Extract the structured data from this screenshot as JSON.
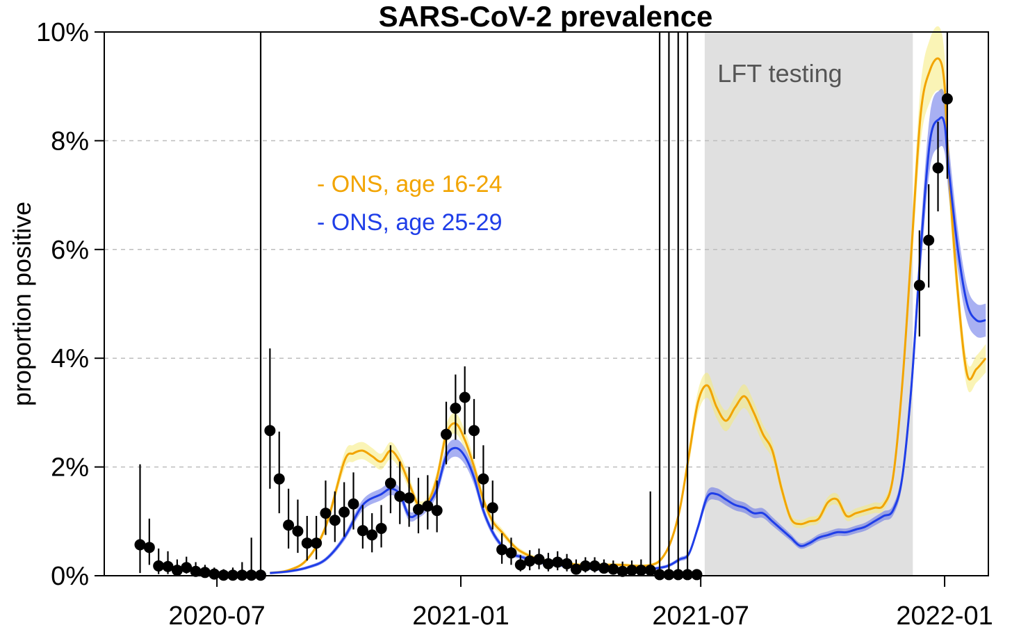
{
  "chart_data": {
    "type": "line",
    "title": "SARS-CoV-2 prevalence",
    "xlabel": "",
    "ylabel": "proportion positive",
    "xlim": [
      "2020-04-07",
      "2022-02-03"
    ],
    "ylim": [
      0,
      10
    ],
    "y_unit": "%",
    "x_ticks": [
      "2020-07-01",
      "2021-01-01",
      "2021-07-01",
      "2022-01-01"
    ],
    "x_tick_labels": [
      "2020-07",
      "2021-01",
      "2021-07",
      "2022-01"
    ],
    "y_ticks": [
      0,
      2,
      4,
      6,
      8,
      10
    ],
    "y_tick_labels": [
      "0%",
      "2%",
      "4%",
      "6%",
      "8%",
      "10%"
    ],
    "grid": "horizontal dashed",
    "legend_position": "upper-left-center",
    "shaded_region": {
      "label": "LFT testing",
      "start": "2021-07-04",
      "end": "2021-12-08",
      "color": "#e0e0e0"
    },
    "series": [
      {
        "name": "- ONS, age 16-24",
        "color": "#f2a400",
        "band_color": "#f5eb7a",
        "x": [
          "2020-08-10",
          "2020-08-24",
          "2020-09-07",
          "2020-09-21",
          "2020-10-05",
          "2020-10-12",
          "2020-10-19",
          "2020-10-26",
          "2020-11-02",
          "2020-11-09",
          "2020-11-16",
          "2020-11-23",
          "2020-11-30",
          "2020-12-07",
          "2020-12-14",
          "2020-12-21",
          "2020-12-28",
          "2021-01-04",
          "2021-01-11",
          "2021-01-18",
          "2021-01-25",
          "2021-02-01",
          "2021-02-08",
          "2021-02-15",
          "2021-03-01",
          "2021-03-15",
          "2021-04-01",
          "2021-04-15",
          "2021-05-01",
          "2021-05-15",
          "2021-05-25",
          "2021-06-01",
          "2021-06-08",
          "2021-06-15",
          "2021-06-22",
          "2021-06-29",
          "2021-07-06",
          "2021-07-13",
          "2021-07-20",
          "2021-07-27",
          "2021-08-03",
          "2021-08-10",
          "2021-08-17",
          "2021-08-24",
          "2021-08-31",
          "2021-09-07",
          "2021-09-14",
          "2021-09-21",
          "2021-09-28",
          "2021-10-05",
          "2021-10-12",
          "2021-10-19",
          "2021-10-26",
          "2021-11-02",
          "2021-11-09",
          "2021-11-16",
          "2021-11-23",
          "2021-11-30",
          "2021-12-07",
          "2021-12-14",
          "2021-12-21",
          "2021-12-28",
          "2022-01-01",
          "2022-01-04",
          "2022-01-11",
          "2022-01-18",
          "2022-01-25",
          "2022-02-01"
        ],
        "values": [
          0.05,
          0.1,
          0.3,
          0.9,
          2.1,
          2.25,
          2.3,
          2.2,
          2.1,
          2.3,
          2.1,
          1.7,
          1.3,
          1.35,
          1.8,
          2.6,
          2.8,
          2.5,
          2.0,
          1.4,
          1.0,
          0.8,
          0.6,
          0.45,
          0.3,
          0.25,
          0.2,
          0.2,
          0.2,
          0.18,
          0.2,
          0.3,
          0.6,
          1.2,
          2.2,
          3.2,
          3.5,
          3.1,
          2.85,
          3.1,
          3.3,
          3.0,
          2.6,
          2.3,
          1.6,
          1.05,
          0.95,
          1.0,
          1.05,
          1.35,
          1.4,
          1.1,
          1.15,
          1.2,
          1.25,
          1.3,
          1.8,
          3.5,
          6.0,
          8.5,
          9.3,
          9.5,
          9.0,
          7.5,
          5.2,
          3.7,
          3.8,
          4.0
        ]
      },
      {
        "name": "- ONS, age 25-29",
        "color": "#1f3ee8",
        "band_color": "#6070e8",
        "x": [
          "2020-08-10",
          "2020-08-24",
          "2020-09-07",
          "2020-09-21",
          "2020-10-05",
          "2020-10-19",
          "2020-11-02",
          "2020-11-09",
          "2020-11-16",
          "2020-11-23",
          "2020-11-30",
          "2020-12-07",
          "2020-12-14",
          "2020-12-21",
          "2020-12-28",
          "2021-01-04",
          "2021-01-11",
          "2021-01-18",
          "2021-01-25",
          "2021-02-01",
          "2021-02-08",
          "2021-02-15",
          "2021-03-01",
          "2021-03-15",
          "2021-04-01",
          "2021-04-15",
          "2021-05-01",
          "2021-05-15",
          "2021-06-01",
          "2021-06-08",
          "2021-06-15",
          "2021-06-22",
          "2021-06-29",
          "2021-07-06",
          "2021-07-13",
          "2021-07-20",
          "2021-07-27",
          "2021-08-03",
          "2021-08-10",
          "2021-08-17",
          "2021-08-24",
          "2021-08-31",
          "2021-09-07",
          "2021-09-14",
          "2021-09-21",
          "2021-09-28",
          "2021-10-05",
          "2021-10-12",
          "2021-10-19",
          "2021-10-26",
          "2021-11-02",
          "2021-11-09",
          "2021-11-16",
          "2021-11-23",
          "2021-11-30",
          "2021-12-07",
          "2021-12-14",
          "2021-12-21",
          "2021-12-28",
          "2022-01-01",
          "2022-01-04",
          "2022-01-11",
          "2022-01-18",
          "2022-01-25",
          "2022-02-01"
        ],
        "values": [
          0.05,
          0.08,
          0.15,
          0.3,
          0.7,
          1.3,
          1.5,
          1.6,
          1.5,
          1.1,
          1.15,
          1.3,
          1.6,
          2.2,
          2.35,
          2.2,
          1.8,
          1.2,
          0.8,
          0.55,
          0.4,
          0.35,
          0.25,
          0.2,
          0.15,
          0.12,
          0.1,
          0.1,
          0.15,
          0.2,
          0.3,
          0.4,
          0.9,
          1.45,
          1.5,
          1.4,
          1.3,
          1.25,
          1.15,
          1.15,
          1.0,
          0.85,
          0.7,
          0.55,
          0.6,
          0.7,
          0.75,
          0.8,
          0.8,
          0.85,
          0.9,
          1.0,
          1.1,
          1.2,
          1.8,
          3.5,
          6.0,
          8.0,
          8.4,
          8.3,
          7.5,
          6.0,
          5.0,
          4.7,
          4.7
        ]
      }
    ],
    "points": {
      "x": [
        "2020-05-04",
        "2020-05-11",
        "2020-05-18",
        "2020-05-25",
        "2020-06-01",
        "2020-06-08",
        "2020-06-15",
        "2020-06-22",
        "2020-06-29",
        "2020-07-06",
        "2020-07-13",
        "2020-07-20",
        "2020-07-27",
        "2020-08-03",
        "2020-08-10",
        "2020-08-17",
        "2020-08-24",
        "2020-08-31",
        "2020-09-07",
        "2020-09-14",
        "2020-09-21",
        "2020-09-28",
        "2020-10-05",
        "2020-10-12",
        "2020-10-19",
        "2020-10-26",
        "2020-11-02",
        "2020-11-09",
        "2020-11-16",
        "2020-11-23",
        "2020-11-30",
        "2020-12-07",
        "2020-12-14",
        "2020-12-21",
        "2020-12-28",
        "2021-01-04",
        "2021-01-11",
        "2021-01-18",
        "2021-01-25",
        "2021-02-01",
        "2021-02-08",
        "2021-02-15",
        "2021-02-22",
        "2021-03-01",
        "2021-03-08",
        "2021-03-15",
        "2021-03-22",
        "2021-03-29",
        "2021-04-05",
        "2021-04-12",
        "2021-04-19",
        "2021-04-26",
        "2021-05-03",
        "2021-05-10",
        "2021-05-17",
        "2021-05-24",
        "2021-05-31",
        "2021-06-07",
        "2021-06-14",
        "2021-06-21",
        "2021-06-28",
        "2021-12-13",
        "2021-12-20",
        "2021-12-27",
        "2022-01-03"
      ],
      "values": [
        0.57,
        0.52,
        0.18,
        0.17,
        0.1,
        0.15,
        0.08,
        0.06,
        0.03,
        0.01,
        0.01,
        0.01,
        0.01,
        0.01,
        2.67,
        1.78,
        0.93,
        0.82,
        0.6,
        0.6,
        1.15,
        1.02,
        1.17,
        1.32,
        0.83,
        0.75,
        0.87,
        1.7,
        1.46,
        1.43,
        1.22,
        1.28,
        1.2,
        2.6,
        3.08,
        3.28,
        2.67,
        1.78,
        1.25,
        0.48,
        0.42,
        0.2,
        0.27,
        0.3,
        0.22,
        0.25,
        0.22,
        0.12,
        0.18,
        0.18,
        0.14,
        0.12,
        0.08,
        0.1,
        0.1,
        0.1,
        0.02,
        0.02,
        0.02,
        0.02,
        0.02,
        5.34,
        6.17,
        7.5,
        8.77
      ],
      "lower": [
        0.05,
        0.2,
        0.03,
        0.03,
        0.02,
        0.04,
        0.02,
        0.01,
        0,
        0,
        0,
        0,
        0,
        0,
        1.6,
        1.15,
        0.5,
        0.42,
        0.28,
        0.3,
        0.75,
        0.62,
        0.72,
        0.85,
        0.5,
        0.43,
        0.52,
        1.15,
        0.95,
        0.9,
        0.78,
        0.85,
        0.8,
        2.05,
        2.5,
        2.6,
        2.15,
        1.25,
        0.85,
        0.22,
        0.2,
        0.08,
        0.1,
        0.12,
        0.08,
        0.1,
        0.08,
        0.04,
        0.06,
        0.06,
        0.04,
        0.03,
        0.02,
        0.02,
        0.02,
        0.02,
        0,
        0,
        0,
        0,
        0,
        4.4,
        5.3,
        6.7,
        7.3
      ],
      "upper": [
        2.05,
        1.05,
        0.5,
        0.45,
        0.3,
        0.35,
        0.25,
        0.2,
        0.15,
        0.12,
        0.15,
        0.25,
        0.7,
        10.0,
        4.18,
        2.65,
        1.6,
        1.4,
        1.1,
        1.1,
        1.75,
        1.55,
        1.72,
        1.9,
        1.3,
        1.15,
        1.3,
        2.4,
        2.1,
        2.0,
        1.8,
        1.85,
        1.75,
        3.2,
        3.7,
        3.85,
        3.25,
        2.4,
        1.75,
        0.78,
        0.7,
        0.38,
        0.47,
        0.5,
        0.42,
        0.45,
        0.4,
        0.3,
        0.34,
        0.34,
        0.3,
        0.28,
        0.26,
        0.28,
        0.3,
        1.55,
        10.0,
        10.0,
        10.0,
        10.0,
        0.05,
        6.35,
        7.2,
        8.35,
        10.0
      ]
    }
  }
}
